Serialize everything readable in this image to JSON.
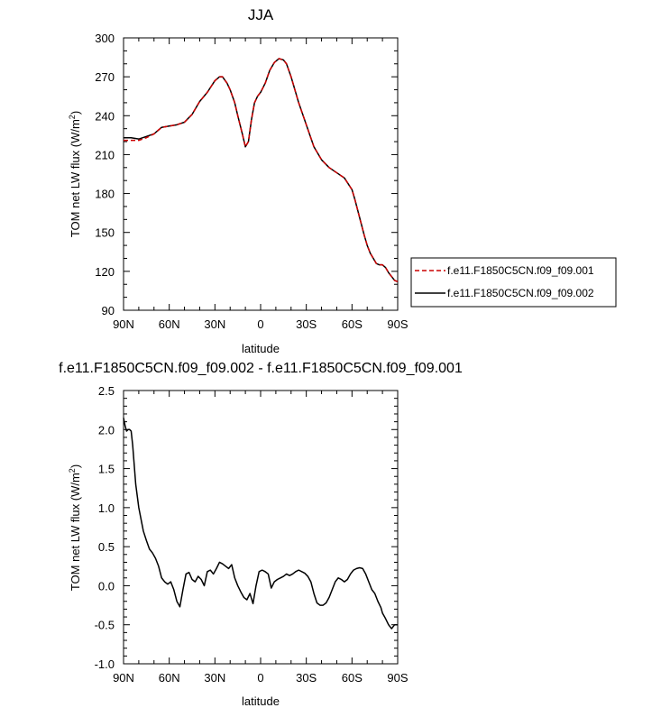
{
  "chart_data": [
    {
      "type": "line",
      "title": "JJA",
      "xlabel": "latitude",
      "ylabel": "TOM net LW flux (W/m²)",
      "ylabel_main": "TOM net LW flux (W/m",
      "ylabel_sup": "2",
      "ylabel_end": ")",
      "xlim": [
        -90,
        90
      ],
      "ylim": [
        90,
        300
      ],
      "xticks": [
        -90,
        -60,
        -30,
        0,
        30,
        60,
        90
      ],
      "xtick_labels": [
        "90N",
        "60N",
        "30N",
        "0",
        "30S",
        "60S",
        "90S"
      ],
      "yticks": [
        90,
        120,
        150,
        180,
        210,
        240,
        270,
        300
      ],
      "ytick_labels": [
        "90",
        "120",
        "150",
        "180",
        "210",
        "240",
        "270",
        "300"
      ],
      "legend": [
        {
          "label": "f.e11.F1850C5CN.f09_f09.001",
          "color": "#cc0000",
          "dash": "dashed"
        },
        {
          "label": "f.e11.F1850C5CN.f09_f09.002",
          "color": "#000000",
          "dash": "solid"
        }
      ],
      "x": [
        -90,
        -85,
        -80,
        -75,
        -70,
        -65,
        -60,
        -55,
        -50,
        -45,
        -40,
        -35,
        -30,
        -27,
        -25,
        -22,
        -20,
        -17,
        -15,
        -12,
        -10,
        -8,
        -6,
        -4,
        -2,
        0,
        3,
        6,
        9,
        12,
        15,
        17,
        20,
        25,
        30,
        35,
        40,
        45,
        50,
        55,
        60,
        62,
        64,
        66,
        68,
        70,
        72,
        74,
        76,
        78,
        80,
        82,
        84,
        86,
        88,
        90
      ],
      "series": [
        {
          "name": "f.e11.F1850C5CN.f09_f09.001",
          "values": [
            221,
            221,
            221,
            223,
            226,
            231,
            232,
            233,
            235,
            241,
            251,
            258,
            267,
            270,
            270,
            265,
            260,
            250,
            240,
            226,
            216,
            220,
            237,
            250,
            255,
            258,
            265,
            275,
            281,
            284,
            283,
            280,
            270,
            250,
            233,
            216,
            206,
            200,
            196,
            192,
            183,
            175,
            166,
            157,
            148,
            140,
            134,
            130,
            126,
            125,
            125,
            123,
            119,
            116,
            113,
            112
          ]
        },
        {
          "name": "f.e11.F1850C5CN.f09_f09.002",
          "values": [
            223,
            223,
            222,
            224,
            226,
            231,
            232,
            233,
            235,
            241,
            251,
            258,
            267,
            270,
            270,
            265,
            260,
            250,
            240,
            226,
            216,
            220,
            237,
            250,
            255,
            258,
            265,
            275,
            281,
            284,
            283,
            280,
            270,
            250,
            233,
            216,
            206,
            200,
            196,
            192,
            183,
            175,
            166,
            157,
            148,
            140,
            134,
            130,
            126,
            125,
            125,
            123,
            119,
            116,
            113,
            112
          ]
        }
      ]
    },
    {
      "type": "line",
      "title": "f.e11.F1850C5CN.f09_f09.002 - f.e11.F1850C5CN.f09_f09.001",
      "xlabel": "latitude",
      "ylabel": "TOM net LW flux (W/m²)",
      "ylabel_main": "TOM net LW flux (W/m",
      "ylabel_sup": "2",
      "ylabel_end": ")",
      "xlim": [
        -90,
        90
      ],
      "ylim": [
        -1.0,
        2.5
      ],
      "xticks": [
        -90,
        -60,
        -30,
        0,
        30,
        60,
        90
      ],
      "xtick_labels": [
        "90N",
        "60N",
        "30N",
        "0",
        "30S",
        "60S",
        "90S"
      ],
      "yticks": [
        -1.0,
        -0.5,
        0.0,
        0.5,
        1.0,
        1.5,
        2.0,
        2.5
      ],
      "ytick_labels": [
        "-1.0",
        "-0.5",
        "0.0",
        "0.5",
        "1.0",
        "1.5",
        "2.0",
        "2.5"
      ],
      "x": [
        -90,
        -89,
        -88,
        -87,
        -86,
        -85,
        -84,
        -83,
        -82,
        -81,
        -80,
        -79,
        -78,
        -77,
        -75,
        -73,
        -71,
        -69,
        -67,
        -65,
        -63,
        -61,
        -59,
        -57,
        -55,
        -53,
        -51,
        -49,
        -47,
        -45,
        -43,
        -41,
        -39,
        -37,
        -35,
        -33,
        -31,
        -29,
        -27,
        -25,
        -23,
        -21,
        -19,
        -17,
        -15,
        -13,
        -11,
        -9,
        -7,
        -5,
        -3,
        -1,
        1,
        3,
        5,
        7,
        9,
        11,
        13,
        15,
        17,
        19,
        21,
        23,
        25,
        27,
        29,
        31,
        33,
        35,
        37,
        39,
        41,
        43,
        45,
        47,
        49,
        51,
        53,
        55,
        57,
        59,
        61,
        63,
        65,
        67,
        69,
        71,
        73,
        75,
        77,
        79,
        80,
        82,
        84,
        86,
        88,
        90
      ],
      "series": [
        {
          "name": "f.e11.F1850C5CN.f09_f09.002 - f.e11.F1850C5CN.f09_f09.001",
          "values": [
            2.15,
            2.05,
            1.98,
            2.0,
            2.0,
            1.98,
            1.8,
            1.55,
            1.3,
            1.15,
            1.0,
            0.9,
            0.8,
            0.7,
            0.58,
            0.47,
            0.42,
            0.35,
            0.25,
            0.1,
            0.05,
            0.02,
            0.05,
            -0.05,
            -0.2,
            -0.27,
            -0.05,
            0.15,
            0.17,
            0.08,
            0.05,
            0.12,
            0.08,
            0.0,
            0.18,
            0.2,
            0.15,
            0.22,
            0.3,
            0.28,
            0.25,
            0.22,
            0.27,
            0.1,
            0.0,
            -0.08,
            -0.15,
            -0.18,
            -0.1,
            -0.23,
            0.0,
            0.18,
            0.2,
            0.18,
            0.15,
            -0.03,
            0.05,
            0.08,
            0.1,
            0.12,
            0.15,
            0.13,
            0.15,
            0.18,
            0.2,
            0.18,
            0.16,
            0.12,
            0.05,
            -0.1,
            -0.22,
            -0.25,
            -0.25,
            -0.22,
            -0.15,
            -0.05,
            0.05,
            0.1,
            0.08,
            0.05,
            0.08,
            0.15,
            0.2,
            0.22,
            0.23,
            0.22,
            0.15,
            0.05,
            -0.05,
            -0.1,
            -0.2,
            -0.28,
            -0.35,
            -0.42,
            -0.5,
            -0.55,
            -0.5,
            -0.5
          ]
        }
      ]
    }
  ]
}
